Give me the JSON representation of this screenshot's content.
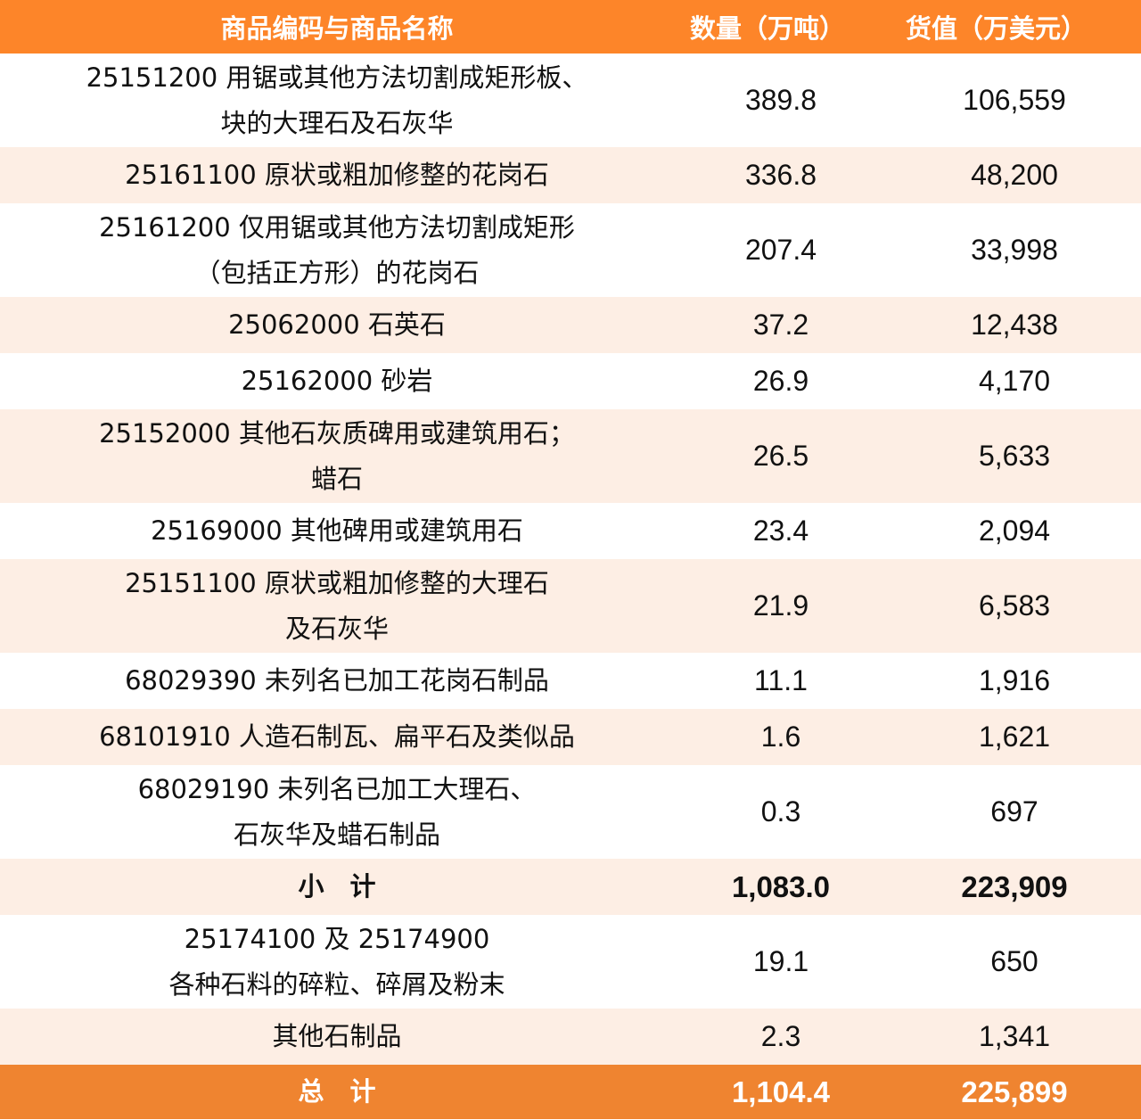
{
  "table": {
    "header": {
      "name": "商品编码与商品名称",
      "quantity": "数量（万吨）",
      "value": "货值（万美元）"
    },
    "rows": [
      {
        "name": "25151200  用锯或其他方法切割成矩形板、\n块的大理石及石灰华",
        "quantity": "389.8",
        "value": "106,559",
        "shade": "white",
        "lines": 2
      },
      {
        "name": "25161100  原状或粗加修整的花岗石",
        "quantity": "336.8",
        "value": "48,200",
        "shade": "tint",
        "lines": 1
      },
      {
        "name": "25161200  仅用锯或其他方法切割成矩形\n（包括正方形）的花岗石",
        "quantity": "207.4",
        "value": "33,998",
        "shade": "white",
        "lines": 2
      },
      {
        "name": "25062000  石英石",
        "quantity": "37.2",
        "value": "12,438",
        "shade": "tint",
        "lines": 1
      },
      {
        "name": "25162000  砂岩",
        "quantity": "26.9",
        "value": "4,170",
        "shade": "white",
        "lines": 1
      },
      {
        "name": "25152000  其他石灰质碑用或建筑用石；\n蜡石",
        "quantity": "26.5",
        "value": "5,633",
        "shade": "tint",
        "lines": 2
      },
      {
        "name": "25169000  其他碑用或建筑用石",
        "quantity": "23.4",
        "value": "2,094",
        "shade": "white",
        "lines": 1
      },
      {
        "name": "25151100  原状或粗加修整的大理石\n及石灰华",
        "quantity": "21.9",
        "value": "6,583",
        "shade": "tint",
        "lines": 2
      },
      {
        "name": "68029390  未列名已加工花岗石制品",
        "quantity": "11.1",
        "value": "1,916",
        "shade": "white",
        "lines": 1
      },
      {
        "name": "68101910  人造石制瓦、扁平石及类似品",
        "quantity": "1.6",
        "value": "1,621",
        "shade": "tint",
        "lines": 1
      },
      {
        "name": "68029190  未列名已加工大理石、\n石灰华及蜡石制品",
        "quantity": "0.3",
        "value": "697",
        "shade": "white",
        "lines": 2
      }
    ],
    "subtotal": {
      "label": "小　计",
      "quantity": "1,083.0",
      "value": "223,909"
    },
    "extra_rows": [
      {
        "name": "25174100 及 25174900\n各种石料的碎粒、碎屑及粉末",
        "quantity": "19.1",
        "value": "650",
        "shade": "white",
        "lines": 2
      },
      {
        "name": "其他石制品",
        "quantity": "2.3",
        "value": "1,341",
        "shade": "tint",
        "lines": 1
      }
    ],
    "total": {
      "label": "总　计",
      "quantity": "1,104.4",
      "value": "225,899"
    }
  },
  "colors": {
    "header_bg": "#fd8529",
    "tint_row_bg": "#fdeee4",
    "total_bg": "#ef8430",
    "text": "#111111"
  }
}
